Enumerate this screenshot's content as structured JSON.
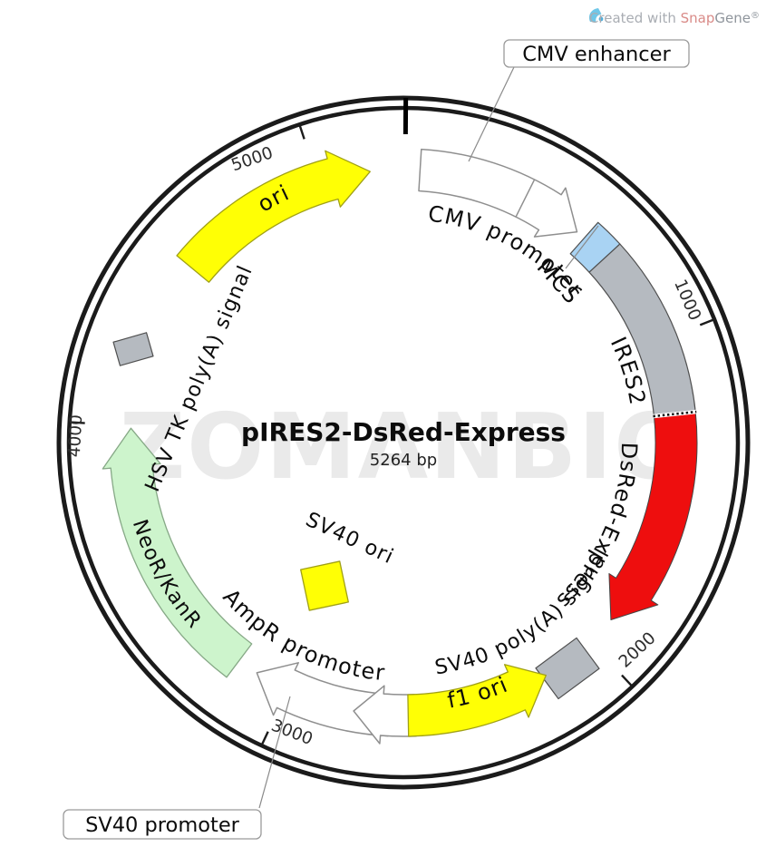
{
  "credit": {
    "prefix": "Created with ",
    "brand_snap": "Snap",
    "brand_gene": "Gene",
    "reg": "®"
  },
  "watermark": "ZOMANBIO",
  "plasmid": {
    "name": "pIRES2-DsRed-Express",
    "size": "5264 bp"
  },
  "callouts": {
    "cmv_enhancer": "CMV enhancer",
    "sv40_promoter": "SV40 promoter"
  },
  "features": {
    "cmv_promoter": "CMV promoter",
    "mcs": "MCS",
    "ires2": "IRES2",
    "dsred_express": "DsRed-Express",
    "sv40_polya": "SV40 poly(A) signal",
    "f1_ori": "f1 ori",
    "ampr_promoter": "AmpR promoter",
    "neor_kanr": "NeoR/KanR",
    "hsv_tk_polya": "HSV TK poly(A) signal",
    "ori": "ori",
    "sv40_ori": "SV40 ori"
  },
  "ticks": [
    "1000",
    "2000",
    "3000",
    "4000",
    "5000"
  ],
  "colors": {
    "feature_yellow": "#ffff05",
    "feature_green": "#cdf4cc",
    "feature_gray": "#b5bac0",
    "feature_red": "#ee0e0e",
    "feature_blue": "#a9d3f3",
    "feature_white": "#ffffff",
    "ring_black": "#1b1b1b",
    "snapgene_snap_red": "#d98b88",
    "snapgene_gene_gray": "#8f959c",
    "snapgene_icon_blue": "#6fc7e8",
    "watermark_gray": "#eaeaea"
  }
}
